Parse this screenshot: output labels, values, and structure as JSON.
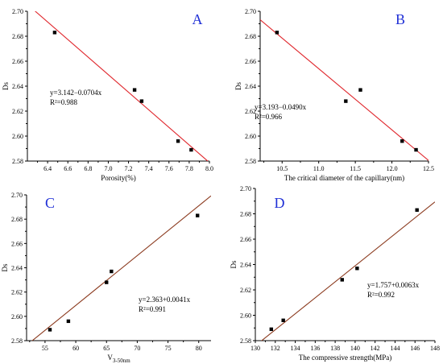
{
  "chart_data": [
    {
      "panel": "A",
      "type": "scatter",
      "xlabel": "Porosity(%)",
      "ylabel": "Ds",
      "xlim": [
        6.2,
        8.0
      ],
      "ylim": [
        2.58,
        2.7
      ],
      "xticks": [
        "6.4",
        "6.6",
        "6.8",
        "7.0",
        "7.2",
        "7.4",
        "7.6",
        "7.8",
        "8.0"
      ],
      "yticks": [
        "2.58",
        "2.60",
        "2.62",
        "2.64",
        "2.66",
        "2.68",
        "2.70"
      ],
      "points": [
        [
          6.47,
          2.683
        ],
        [
          7.26,
          2.637
        ],
        [
          7.33,
          2.628
        ],
        [
          7.69,
          2.596
        ],
        [
          7.82,
          2.589
        ]
      ],
      "fit": {
        "intercept": 3.142,
        "slope": -0.0704
      },
      "fit_color": "#e0282e",
      "equation": "y=3.142−0.0704x",
      "r2": "R²=0.988"
    },
    {
      "panel": "B",
      "type": "scatter",
      "xlabel": "The critical diameter of the capillary(nm)",
      "ylabel": "Ds",
      "xlim": [
        10.2,
        12.5
      ],
      "ylim": [
        2.58,
        2.7
      ],
      "xticks": [
        "10.5",
        "11.0",
        "11.5",
        "12.0",
        "12.5"
      ],
      "yticks": [
        "2.58",
        "2.60",
        "2.62",
        "2.64",
        "2.66",
        "2.68",
        "2.70"
      ],
      "points": [
        [
          10.43,
          2.683
        ],
        [
          11.37,
          2.628
        ],
        [
          11.57,
          2.637
        ],
        [
          12.14,
          2.596
        ],
        [
          12.33,
          2.589
        ]
      ],
      "fit": {
        "intercept": 3.193,
        "slope": -0.049
      },
      "fit_color": "#e0282e",
      "equation": "y=3.193−0.0490x",
      "r2": "R²=0.966"
    },
    {
      "panel": "C",
      "type": "scatter",
      "xlabel": "V",
      "xlabel_sub": "3-50nm",
      "ylabel": "Ds",
      "xlim": [
        52,
        82
      ],
      "ylim": [
        2.58,
        2.7
      ],
      "xticks": [
        "55",
        "60",
        "65",
        "70",
        "75",
        "80"
      ],
      "yticks": [
        "2.58",
        "2.60",
        "2.62",
        "2.64",
        "2.66",
        "2.68",
        "2.70"
      ],
      "points": [
        [
          55.8,
          2.589
        ],
        [
          58.8,
          2.596
        ],
        [
          65.0,
          2.628
        ],
        [
          65.8,
          2.637
        ],
        [
          79.8,
          2.683
        ]
      ],
      "fit": {
        "intercept": 2.363,
        "slope": 0.0041
      },
      "fit_color": "#8b3a1e",
      "equation": "y=2.363+0.0041x",
      "r2": "R²=0.991"
    },
    {
      "panel": "D",
      "type": "scatter",
      "xlabel": "The compressive strength(MPa)",
      "ylabel": "Ds",
      "xlim": [
        130,
        148
      ],
      "ylim": [
        2.58,
        2.7
      ],
      "xticks": [
        "130",
        "132",
        "134",
        "136",
        "138",
        "140",
        "142",
        "144",
        "146",
        "148"
      ],
      "yticks": [
        "2.58",
        "2.60",
        "2.62",
        "2.64",
        "2.66",
        "2.68",
        "2.70"
      ],
      "points": [
        [
          131.6,
          2.589
        ],
        [
          132.8,
          2.596
        ],
        [
          138.7,
          2.628
        ],
        [
          140.2,
          2.637
        ],
        [
          146.2,
          2.683
        ]
      ],
      "fit": {
        "intercept": 1.757,
        "slope": 0.0063
      },
      "fit_color": "#8b3a1e",
      "equation": "y=1.757+0.0063x",
      "r2": "R²=0.992"
    }
  ]
}
